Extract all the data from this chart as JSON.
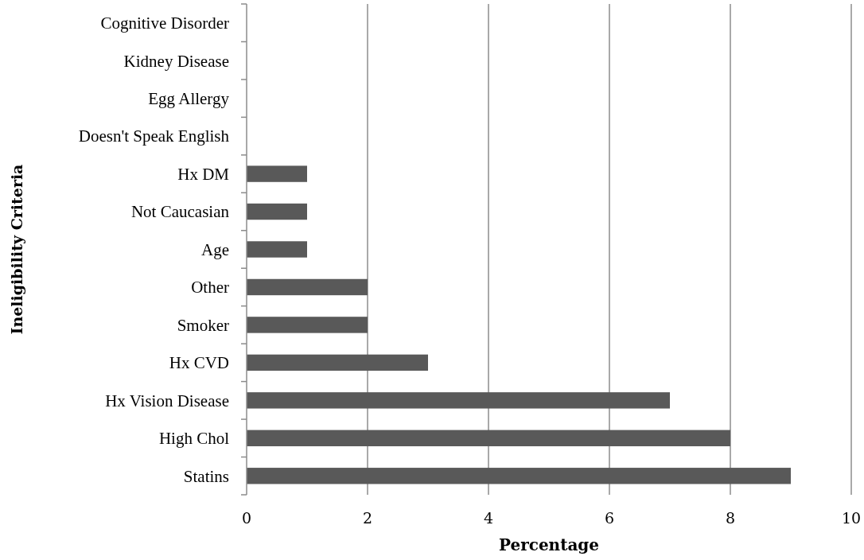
{
  "chart_data": {
    "type": "bar",
    "orientation": "horizontal",
    "xlabel": "Percentage",
    "ylabel": "Ineligibility Criteria",
    "categories": [
      "Cognitive Disorder",
      "Kidney Disease",
      "Egg Allergy",
      "Doesn't Speak English",
      "Hx DM",
      "Not Caucasian",
      "Age",
      "Other",
      "Smoker",
      "Hx CVD",
      "Hx Vision Disease",
      "High Chol",
      "Statins"
    ],
    "values": [
      0,
      0,
      0,
      0,
      1,
      1,
      1,
      2,
      2,
      3,
      7,
      8,
      9
    ],
    "color": "#595959",
    "xlim": [
      0,
      10
    ],
    "xticks": [
      0,
      2,
      4,
      6,
      8,
      10
    ],
    "grid": "x"
  }
}
